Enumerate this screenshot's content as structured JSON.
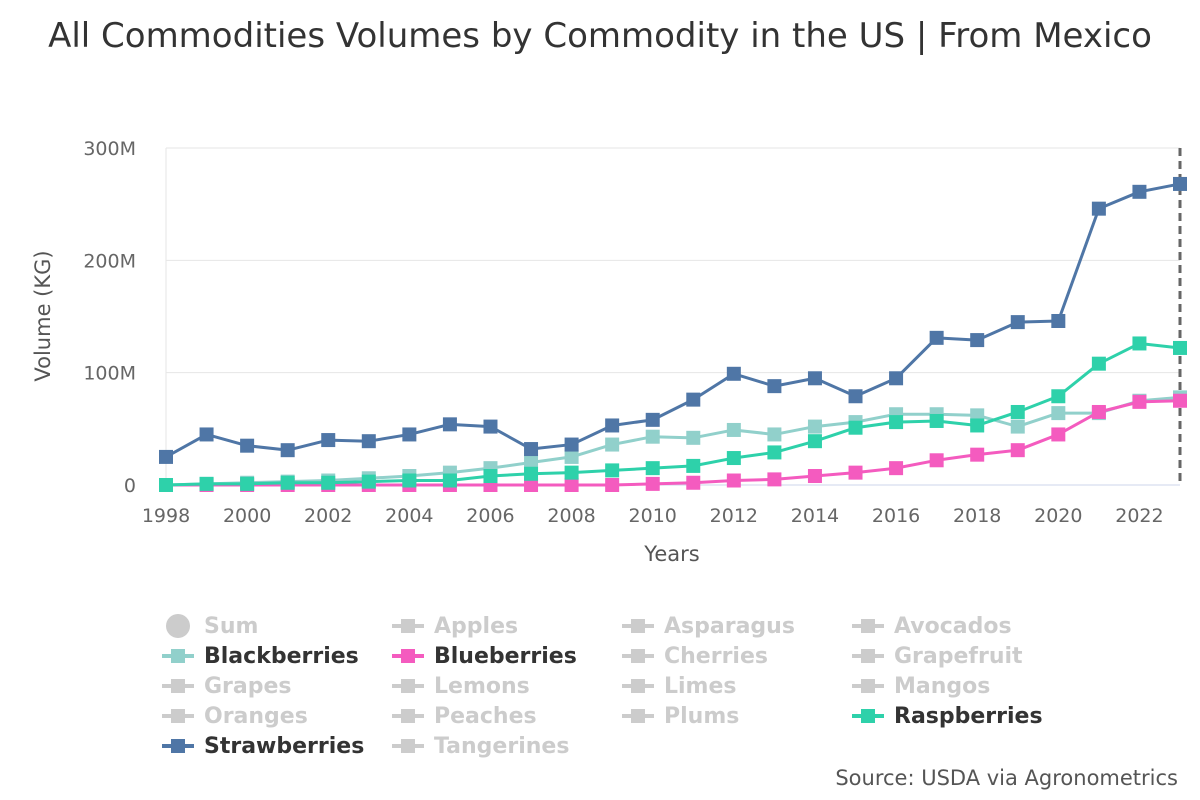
{
  "chart_data": {
    "type": "line",
    "title": "All Commodities Volumes by Commodity in the US | From Mexico",
    "xlabel": "Years",
    "ylabel": "Volume (KG)",
    "source": "Source: USDA via Agronometrics",
    "ylim": [
      0,
      300000000
    ],
    "yticks": [
      {
        "value": 0,
        "label": "0"
      },
      {
        "value": 100000000,
        "label": "100M"
      },
      {
        "value": 200000000,
        "label": "200M"
      },
      {
        "value": 300000000,
        "label": "300M"
      }
    ],
    "xlim": [
      1998,
      2023
    ],
    "xticks": [
      "1998",
      "2000",
      "2002",
      "2004",
      "2006",
      "2008",
      "2010",
      "2012",
      "2014",
      "2016",
      "2018",
      "2020",
      "2022"
    ],
    "x": [
      1998,
      1999,
      2000,
      2001,
      2002,
      2003,
      2004,
      2005,
      2006,
      2007,
      2008,
      2009,
      2010,
      2011,
      2012,
      2013,
      2014,
      2015,
      2016,
      2017,
      2018,
      2019,
      2020,
      2021,
      2022,
      2023
    ],
    "crosshair_x": 2023,
    "series": [
      {
        "name": "Blackberries",
        "color": "#91d0cb",
        "values": [
          0,
          1000000,
          2000000,
          3000000,
          4000000,
          6000000,
          8000000,
          11000000,
          15000000,
          20000000,
          25000000,
          36000000,
          43000000,
          42000000,
          49000000,
          45000000,
          52000000,
          56000000,
          63000000,
          63000000,
          62000000,
          52000000,
          64000000,
          64000000,
          75000000,
          78000000
        ]
      },
      {
        "name": "Blueberries",
        "color": "#f45bbf",
        "values": [
          0,
          0,
          0,
          0,
          0,
          0,
          0,
          0,
          0,
          0,
          0,
          0,
          1000000,
          2000000,
          4000000,
          5000000,
          8000000,
          11000000,
          15000000,
          22000000,
          27000000,
          31000000,
          45000000,
          65000000,
          74000000,
          75000000
        ]
      },
      {
        "name": "Raspberries",
        "color": "#2ed1aa",
        "values": [
          0,
          1000000,
          1000000,
          2000000,
          2000000,
          3000000,
          4000000,
          4000000,
          8000000,
          10000000,
          11000000,
          13000000,
          15000000,
          17000000,
          24000000,
          29000000,
          39000000,
          51000000,
          56000000,
          57000000,
          53000000,
          65000000,
          79000000,
          108000000,
          126000000,
          122000000
        ]
      },
      {
        "name": "Strawberries",
        "color": "#4f76a6",
        "values": [
          25000000,
          45000000,
          35000000,
          31000000,
          40000000,
          39000000,
          45000000,
          54000000,
          52000000,
          32000000,
          36000000,
          53000000,
          58000000,
          76000000,
          99000000,
          88000000,
          95000000,
          79000000,
          95000000,
          131000000,
          129000000,
          145000000,
          146000000,
          246000000,
          261000000,
          268000000
        ]
      }
    ],
    "legend": {
      "placement": "bottom",
      "items": [
        {
          "label": "Sum",
          "visible": false,
          "symbol": "circle"
        },
        {
          "label": "Apples",
          "visible": false,
          "symbol": "square"
        },
        {
          "label": "Asparagus",
          "visible": false,
          "symbol": "square"
        },
        {
          "label": "Avocados",
          "visible": false,
          "symbol": "square"
        },
        {
          "label": "Blackberries",
          "visible": true,
          "symbol": "square",
          "color": "#91d0cb"
        },
        {
          "label": "Blueberries",
          "visible": true,
          "symbol": "square",
          "color": "#f45bbf"
        },
        {
          "label": "Cherries",
          "visible": false,
          "symbol": "square"
        },
        {
          "label": "Grapefruit",
          "visible": false,
          "symbol": "square"
        },
        {
          "label": "Grapes",
          "visible": false,
          "symbol": "square"
        },
        {
          "label": "Lemons",
          "visible": false,
          "symbol": "square"
        },
        {
          "label": "Limes",
          "visible": false,
          "symbol": "square"
        },
        {
          "label": "Mangos",
          "visible": false,
          "symbol": "square"
        },
        {
          "label": "Oranges",
          "visible": false,
          "symbol": "square"
        },
        {
          "label": "Peaches",
          "visible": false,
          "symbol": "square"
        },
        {
          "label": "Plums",
          "visible": false,
          "symbol": "square"
        },
        {
          "label": "Raspberries",
          "visible": true,
          "symbol": "square",
          "color": "#2ed1aa"
        },
        {
          "label": "Strawberries",
          "visible": true,
          "symbol": "square",
          "color": "#4f76a6"
        },
        {
          "label": "Tangerines",
          "visible": false,
          "symbol": "square"
        }
      ]
    }
  }
}
